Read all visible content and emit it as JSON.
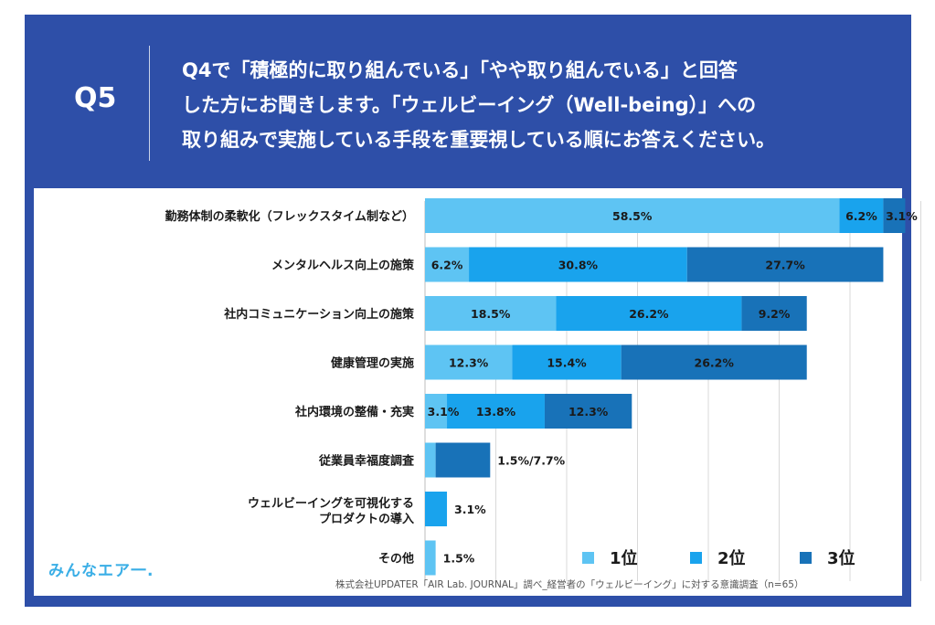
{
  "question": {
    "label": "Q5",
    "lines": [
      "Q4で「積極的に取り組んでいる」「やや取り組んでいる」と回答",
      "した方にお聞きします。「ウェルビーイング（Well-being）」への",
      "取り組みで実施している手段を重要視している順にお答えください。"
    ]
  },
  "logo": "みんなエア一.",
  "source": "株式会社UPDATER「AIR Lab. JOURNAL」調べ_経営者の「ウェルビーイング」に対する意識調査（n=65）",
  "colors": {
    "rank1": "#5ec4f3",
    "rank2": "#19a3ed",
    "rank3": "#1872b8",
    "frame": "#2e4fa8"
  },
  "chart_data": {
    "type": "bar",
    "orientation": "horizontal",
    "stacked": true,
    "categories": [
      "勤務体制の柔軟化（フレックスタイム制など）",
      "メンタルヘルス向上の施策",
      "社内コミュニケーション向上の施策",
      "健康管理の実施",
      "社内環境の整備・充実",
      "従業員幸福度調査",
      "ウェルビーイングを可視化する\nプロダクトの導入",
      "その他"
    ],
    "series": [
      {
        "name": "1位",
        "values": [
          58.5,
          6.2,
          18.5,
          12.3,
          3.1,
          1.5,
          0,
          1.5
        ]
      },
      {
        "name": "2位",
        "values": [
          6.2,
          30.8,
          26.2,
          15.4,
          13.8,
          0,
          3.1,
          0
        ]
      },
      {
        "name": "3位",
        "values": [
          3.1,
          27.7,
          9.2,
          26.2,
          12.3,
          7.7,
          0,
          0
        ]
      }
    ],
    "data_labels": [
      [
        "58.5%",
        "6.2%",
        "3.1%"
      ],
      [
        "6.2%",
        "30.8%",
        "27.7%"
      ],
      [
        "18.5%",
        "26.2%",
        "9.2%"
      ],
      [
        "12.3%",
        "15.4%",
        "26.2%"
      ],
      [
        "3.1%",
        "13.8%",
        "12.3%"
      ],
      [
        "1.5%/7.7%"
      ],
      [
        "3.1%"
      ],
      [
        "1.5%"
      ]
    ],
    "legend": [
      "1位",
      "2位",
      "3位"
    ],
    "legend_position": "bottom-right",
    "xlim": [
      0,
      70
    ],
    "grid": true
  }
}
